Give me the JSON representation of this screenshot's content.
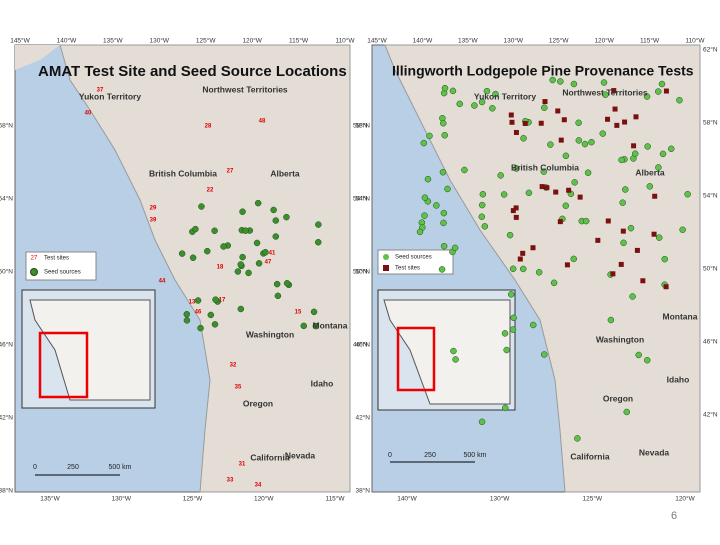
{
  "slide_number": "6",
  "left_map": {
    "title": "AMAT Test Site and Seed Source Locations",
    "top_labels": [
      "145°W",
      "140°W",
      "135°W",
      "130°W",
      "125°W",
      "120°W",
      "115°W",
      "110°W"
    ],
    "bottom_labels": [
      "135°W",
      "130°W",
      "125°W",
      "120°W",
      "115°W"
    ],
    "left_labels": [
      "58°N",
      "54°N",
      "50°N",
      "46°N",
      "42°N",
      "38°N"
    ],
    "right_labels": [
      "58°N",
      "54°N",
      "50°N",
      "46°N"
    ],
    "regions": [
      "Yukon Territory",
      "Northwest Territories",
      "British Columbia",
      "Alberta",
      "Washington",
      "Montana",
      "Idaho",
      "Oregon",
      "California",
      "Nevada"
    ],
    "legend": {
      "sample": "27",
      "items": [
        "Test sites",
        "Seed sources"
      ]
    },
    "scale": [
      "0",
      "250",
      "500 km"
    ],
    "site_labels": [
      "37",
      "40",
      "28",
      "48",
      "27",
      "22",
      "29",
      "39",
      "41",
      "47",
      "18",
      "44",
      "13",
      "17",
      "46",
      "15",
      "32",
      "35",
      "31",
      "33",
      "34"
    ]
  },
  "right_map": {
    "title": "Illingworth Lodgepole Pine Provenance Tests",
    "top_labels": [
      "145°W",
      "140°W",
      "135°W",
      "130°W",
      "125°W",
      "120°W",
      "115°W",
      "110°W"
    ],
    "bottom_labels": [
      "140°W",
      "130°W",
      "125°W",
      "120°W"
    ],
    "left_labels": [
      "58°N",
      "54°N",
      "50°N",
      "46°N",
      "42°N",
      "38°N"
    ],
    "right_labels": [
      "62°N",
      "58°N",
      "54°N",
      "50°N",
      "46°N",
      "42°N"
    ],
    "regions": [
      "Yukon Territory",
      "Northwest Territories",
      "British Columbia",
      "Alberta",
      "Washington",
      "Montana",
      "Idaho",
      "Oregon",
      "California",
      "Nevada"
    ],
    "legend": {
      "items": [
        "Seed sources",
        "Test sites"
      ]
    },
    "scale": [
      "0",
      "250",
      "500 km"
    ]
  }
}
